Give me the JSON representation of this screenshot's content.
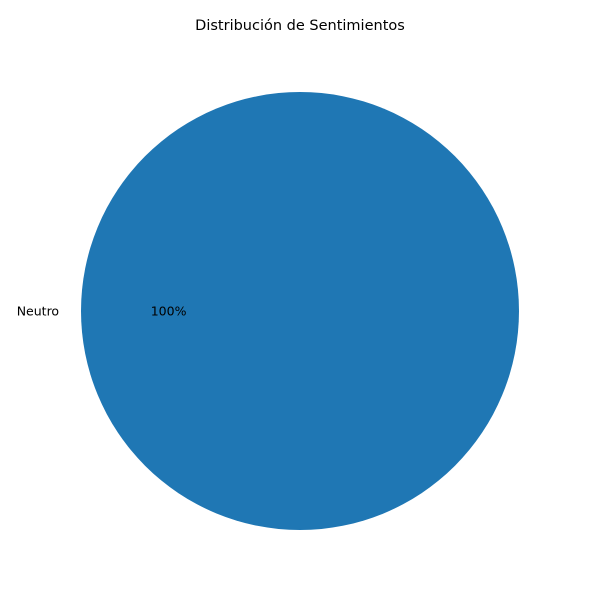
{
  "chart_data": {
    "type": "pie",
    "title": "Distribución de Sentimientos",
    "slices": [
      {
        "label": "Neutro",
        "value": 100,
        "percent_label": "100%",
        "color": "#1f77b4"
      }
    ],
    "legend": "none"
  }
}
